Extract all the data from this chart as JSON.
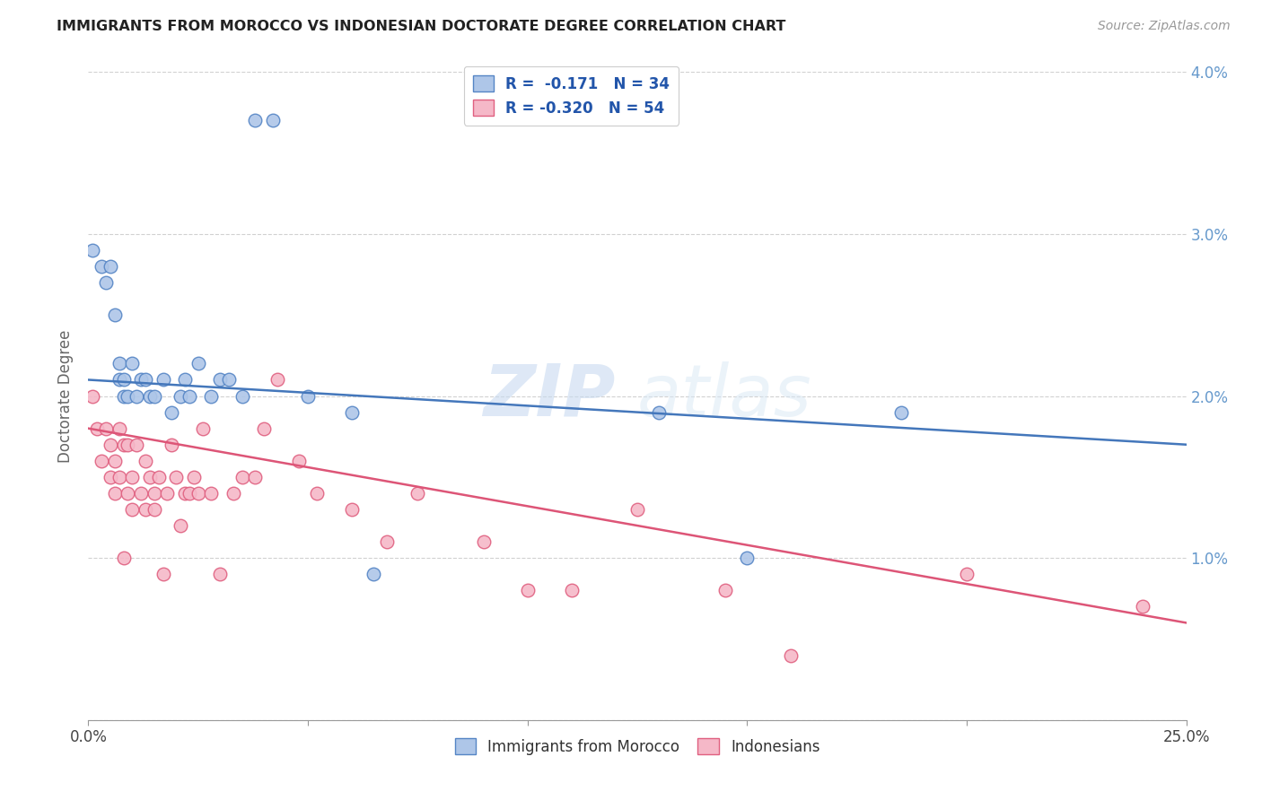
{
  "title": "IMMIGRANTS FROM MOROCCO VS INDONESIAN DOCTORATE DEGREE CORRELATION CHART",
  "source": "Source: ZipAtlas.com",
  "ylabel_label": "Doctorate Degree",
  "x_min": 0.0,
  "x_max": 0.25,
  "y_min": 0.0,
  "y_max": 0.04,
  "blue_color": "#aec6e8",
  "pink_color": "#f5b8c8",
  "blue_edge_color": "#5585c5",
  "pink_edge_color": "#e06080",
  "blue_line_color": "#4477bb",
  "pink_line_color": "#dd5577",
  "legend_line1": "R =  -0.171   N = 34",
  "legend_line2": "R = -0.320   N = 54",
  "watermark_zip": "ZIP",
  "watermark_atlas": "atlas",
  "blue_points_x": [
    0.001,
    0.003,
    0.004,
    0.005,
    0.006,
    0.007,
    0.007,
    0.008,
    0.008,
    0.009,
    0.01,
    0.011,
    0.012,
    0.013,
    0.014,
    0.015,
    0.017,
    0.019,
    0.021,
    0.022,
    0.023,
    0.025,
    0.028,
    0.03,
    0.032,
    0.035,
    0.038,
    0.042,
    0.05,
    0.06,
    0.065,
    0.13,
    0.15,
    0.185
  ],
  "blue_points_y": [
    0.029,
    0.028,
    0.027,
    0.028,
    0.025,
    0.022,
    0.021,
    0.02,
    0.021,
    0.02,
    0.022,
    0.02,
    0.021,
    0.021,
    0.02,
    0.02,
    0.021,
    0.019,
    0.02,
    0.021,
    0.02,
    0.022,
    0.02,
    0.021,
    0.021,
    0.02,
    0.037,
    0.037,
    0.02,
    0.019,
    0.009,
    0.019,
    0.01,
    0.019
  ],
  "pink_points_x": [
    0.001,
    0.002,
    0.003,
    0.004,
    0.005,
    0.005,
    0.006,
    0.006,
    0.007,
    0.007,
    0.008,
    0.008,
    0.009,
    0.009,
    0.01,
    0.01,
    0.011,
    0.012,
    0.013,
    0.013,
    0.014,
    0.015,
    0.015,
    0.016,
    0.017,
    0.018,
    0.019,
    0.02,
    0.021,
    0.022,
    0.023,
    0.024,
    0.025,
    0.026,
    0.028,
    0.03,
    0.033,
    0.035,
    0.038,
    0.04,
    0.043,
    0.048,
    0.052,
    0.06,
    0.068,
    0.075,
    0.09,
    0.1,
    0.11,
    0.125,
    0.145,
    0.16,
    0.2,
    0.24
  ],
  "pink_points_y": [
    0.02,
    0.018,
    0.016,
    0.018,
    0.015,
    0.017,
    0.016,
    0.014,
    0.018,
    0.015,
    0.017,
    0.01,
    0.017,
    0.014,
    0.015,
    0.013,
    0.017,
    0.014,
    0.013,
    0.016,
    0.015,
    0.014,
    0.013,
    0.015,
    0.009,
    0.014,
    0.017,
    0.015,
    0.012,
    0.014,
    0.014,
    0.015,
    0.014,
    0.018,
    0.014,
    0.009,
    0.014,
    0.015,
    0.015,
    0.018,
    0.021,
    0.016,
    0.014,
    0.013,
    0.011,
    0.014,
    0.011,
    0.008,
    0.008,
    0.013,
    0.008,
    0.004,
    0.009,
    0.007
  ],
  "blue_line_x0": 0.0,
  "blue_line_y0": 0.021,
  "blue_line_x1": 0.25,
  "blue_line_y1": 0.017,
  "pink_line_x0": 0.0,
  "pink_line_y0": 0.018,
  "pink_line_x1": 0.25,
  "pink_line_y1": 0.006
}
